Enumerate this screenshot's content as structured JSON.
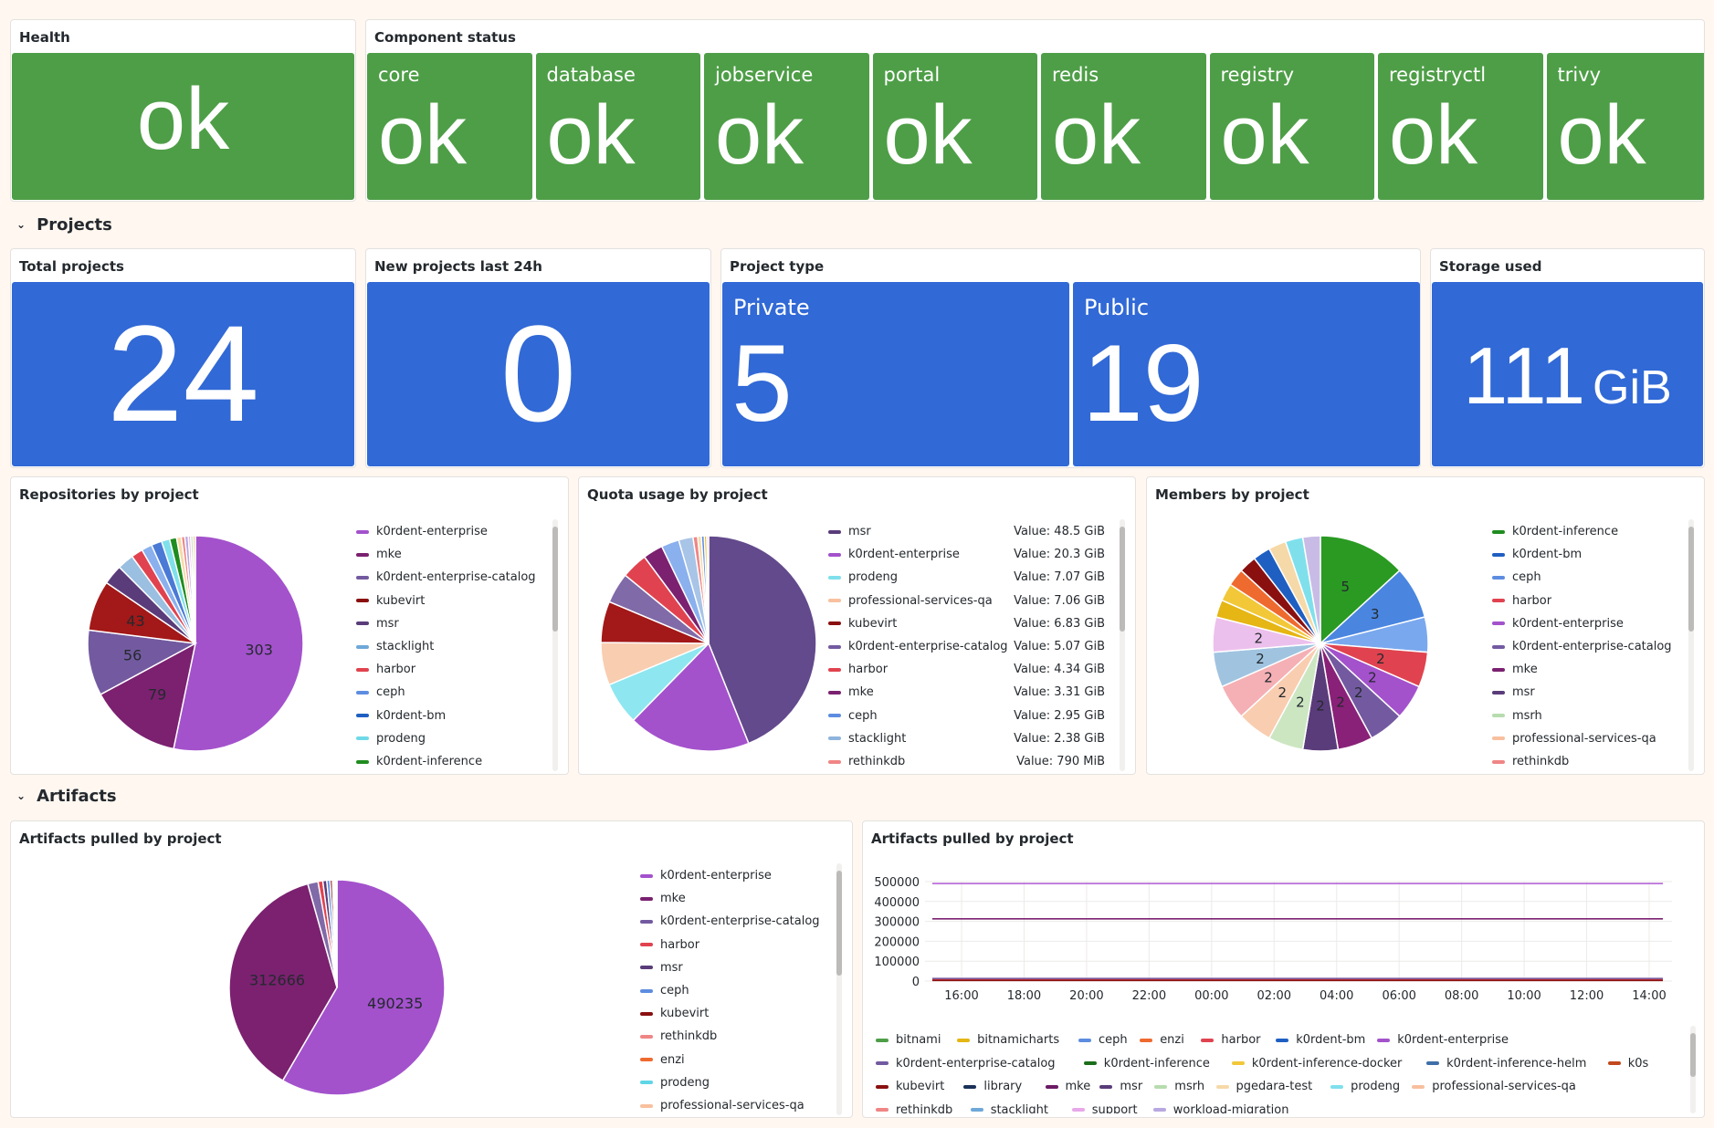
{
  "health": {
    "title": "Health",
    "value": "ok"
  },
  "component_status": {
    "title": "Component status",
    "items": [
      {
        "name": "core",
        "value": "ok"
      },
      {
        "name": "database",
        "value": "ok"
      },
      {
        "name": "jobservice",
        "value": "ok"
      },
      {
        "name": "portal",
        "value": "ok"
      },
      {
        "name": "redis",
        "value": "ok"
      },
      {
        "name": "registry",
        "value": "ok"
      },
      {
        "name": "registryctl",
        "value": "ok"
      },
      {
        "name": "trivy",
        "value": "ok"
      }
    ]
  },
  "sections": {
    "projects": "Projects",
    "artifacts": "Artifacts"
  },
  "total_projects": {
    "title": "Total projects",
    "value": "24"
  },
  "new_projects": {
    "title": "New projects last 24h",
    "value": "0"
  },
  "project_type": {
    "title": "Project type",
    "private_label": "Private",
    "private_value": "5",
    "public_label": "Public",
    "public_value": "19"
  },
  "storage": {
    "title": "Storage used",
    "value": "111",
    "unit": "GiB"
  },
  "colors": {
    "green": "#4e9e47",
    "blue": "#3169d6"
  },
  "repos_pie": {
    "title": "Repositories by project",
    "legend": [
      {
        "name": "k0rdent-enterprise",
        "color": "#a352cc"
      },
      {
        "name": "mke",
        "color": "#7b2170"
      },
      {
        "name": "k0rdent-enterprise-catalog",
        "color": "#735aa0"
      },
      {
        "name": "kubevirt",
        "color": "#8a1010"
      },
      {
        "name": "msr",
        "color": "#5a3c7a"
      },
      {
        "name": "stacklight",
        "color": "#6ea8d8"
      },
      {
        "name": "harbor",
        "color": "#e0434f"
      },
      {
        "name": "ceph",
        "color": "#5d8de0"
      },
      {
        "name": "k0rdent-bm",
        "color": "#1f5fc2"
      },
      {
        "name": "prodeng",
        "color": "#6fd9e8"
      },
      {
        "name": "k0rdent-inference",
        "color": "#1f8c1f"
      }
    ]
  },
  "quota_pie": {
    "title": "Quota usage by project",
    "legend": [
      {
        "name": "msr",
        "value": "Value: 48.5 GiB",
        "color": "#5a3c7a"
      },
      {
        "name": "k0rdent-enterprise",
        "value": "Value: 20.3 GiB",
        "color": "#a352cc"
      },
      {
        "name": "prodeng",
        "value": "Value: 7.07 GiB",
        "color": "#7fe0ec"
      },
      {
        "name": "professional-services-qa",
        "value": "Value: 7.06 GiB",
        "color": "#f8c09e"
      },
      {
        "name": "kubevirt",
        "value": "Value: 6.83 GiB",
        "color": "#8a1010"
      },
      {
        "name": "k0rdent-enterprise-catalog",
        "value": "Value: 5.07 GiB",
        "color": "#735aa0"
      },
      {
        "name": "harbor",
        "value": "Value: 4.34 GiB",
        "color": "#e0434f"
      },
      {
        "name": "mke",
        "value": "Value: 3.31 GiB",
        "color": "#7b2170"
      },
      {
        "name": "ceph",
        "value": "Value: 2.95 GiB",
        "color": "#5d8de0"
      },
      {
        "name": "stacklight",
        "value": "Value: 2.38 GiB",
        "color": "#8fb4de"
      },
      {
        "name": "rethinkdb",
        "value": "Value: 790 MiB",
        "color": "#f08585"
      }
    ]
  },
  "members_pie": {
    "title": "Members by project",
    "legend": [
      {
        "name": "k0rdent-inference",
        "color": "#1f8c1f"
      },
      {
        "name": "k0rdent-bm",
        "color": "#1f5fc2"
      },
      {
        "name": "ceph",
        "color": "#5d8de0"
      },
      {
        "name": "harbor",
        "color": "#e0434f"
      },
      {
        "name": "k0rdent-enterprise",
        "color": "#a352cc"
      },
      {
        "name": "k0rdent-enterprise-catalog",
        "color": "#735aa0"
      },
      {
        "name": "mke",
        "color": "#7b2170"
      },
      {
        "name": "msr",
        "color": "#5a3c7a"
      },
      {
        "name": "msrh",
        "color": "#b7dcae"
      },
      {
        "name": "professional-services-qa",
        "color": "#f8c09e"
      },
      {
        "name": "rethinkdb",
        "color": "#f08585"
      }
    ]
  },
  "artifacts_pie": {
    "title": "Artifacts pulled by project",
    "legend": [
      {
        "name": "k0rdent-enterprise",
        "color": "#a352cc"
      },
      {
        "name": "mke",
        "color": "#7b2170"
      },
      {
        "name": "k0rdent-enterprise-catalog",
        "color": "#735aa0"
      },
      {
        "name": "harbor",
        "color": "#e0434f"
      },
      {
        "name": "msr",
        "color": "#5a3c7a"
      },
      {
        "name": "ceph",
        "color": "#5d8de0"
      },
      {
        "name": "kubevirt",
        "color": "#8a1010"
      },
      {
        "name": "rethinkdb",
        "color": "#f08585"
      },
      {
        "name": "enzi",
        "color": "#ef6a2f"
      },
      {
        "name": "prodeng",
        "color": "#5fd6e6"
      },
      {
        "name": "professional-services-qa",
        "color": "#f8c09e"
      }
    ]
  },
  "artifacts_ts": {
    "title": "Artifacts pulled by project",
    "legend": [
      {
        "name": "bitnami",
        "color": "#4e9e47"
      },
      {
        "name": "bitnamicharts",
        "color": "#e5b614"
      },
      {
        "name": "ceph",
        "color": "#5d8de0"
      },
      {
        "name": "enzi",
        "color": "#ef6a2f"
      },
      {
        "name": "harbor",
        "color": "#e0434f"
      },
      {
        "name": "k0rdent-bm",
        "color": "#1f5fc2"
      },
      {
        "name": "k0rdent-enterprise",
        "color": "#a352cc"
      },
      {
        "name": "k0rdent-enterprise-catalog",
        "color": "#735aa0"
      },
      {
        "name": "k0rdent-inference",
        "color": "#1a6e1a"
      },
      {
        "name": "k0rdent-inference-docker",
        "color": "#f2c838"
      },
      {
        "name": "k0rdent-inference-helm",
        "color": "#3f6fa8"
      },
      {
        "name": "k0s",
        "color": "#c2481e"
      },
      {
        "name": "kubevirt",
        "color": "#8a1010"
      },
      {
        "name": "library",
        "color": "#1a3158"
      },
      {
        "name": "mke",
        "color": "#6c1a64"
      },
      {
        "name": "msr",
        "color": "#5a3c7a"
      },
      {
        "name": "msrh",
        "color": "#b7dcae"
      },
      {
        "name": "pgedara-test",
        "color": "#f6d9a8"
      },
      {
        "name": "prodeng",
        "color": "#7fe0ec"
      },
      {
        "name": "professional-services-qa",
        "color": "#f8c09e"
      },
      {
        "name": "rethinkdb",
        "color": "#f08585"
      },
      {
        "name": "stacklight",
        "color": "#6ea8d8"
      },
      {
        "name": "support",
        "color": "#e8a8e8"
      },
      {
        "name": "workload-migration",
        "color": "#b8a8e0"
      }
    ]
  },
  "chart_data": [
    {
      "type": "pie",
      "title": "Repositories by project",
      "slices": [
        {
          "name": "k0rdent-enterprise",
          "value": 303,
          "label": "303",
          "color": "#a352cc"
        },
        {
          "name": "mke",
          "value": 79,
          "label": "79",
          "color": "#7b2170"
        },
        {
          "name": "k0rdent-enterprise-catalog",
          "value": 56,
          "label": "56",
          "color": "#735aa0"
        },
        {
          "name": "kubevirt",
          "value": 43,
          "label": "43",
          "color": "#a31818"
        },
        {
          "name": "msr",
          "value": 17,
          "color": "#5a3c7a"
        },
        {
          "name": "stacklight",
          "value": 14,
          "color": "#9bbfe0"
        },
        {
          "name": "harbor",
          "value": 10,
          "color": "#e0434f"
        },
        {
          "name": "ceph",
          "value": 9,
          "color": "#8ab0ee"
        },
        {
          "name": "k0rdent-bm",
          "value": 9,
          "color": "#4a7ad6"
        },
        {
          "name": "prodeng",
          "value": 7,
          "color": "#7fe0ec"
        },
        {
          "name": "k0rdent-inference",
          "value": 6,
          "color": "#1f8c1f"
        },
        {
          "name": "other-1",
          "value": 4,
          "color": "#f6d9a8"
        },
        {
          "name": "other-2",
          "value": 3,
          "color": "#f08585"
        },
        {
          "name": "other-3",
          "value": 3,
          "color": "#b8a8e0"
        },
        {
          "name": "other-4",
          "value": 2,
          "color": "#e8a8e8"
        },
        {
          "name": "other-5",
          "value": 2,
          "color": "#b7dcae"
        },
        {
          "name": "other-6",
          "value": 2,
          "color": "#f8c09e"
        }
      ]
    },
    {
      "type": "pie",
      "title": "Quota usage by project",
      "slices": [
        {
          "name": "msr",
          "value": 48.5,
          "color": "#634a8c"
        },
        {
          "name": "k0rdent-enterprise",
          "value": 20.3,
          "color": "#a352cc"
        },
        {
          "name": "prodeng",
          "value": 7.07,
          "color": "#8ee6f0"
        },
        {
          "name": "professional-services-qa",
          "value": 7.06,
          "color": "#f9cdb0"
        },
        {
          "name": "kubevirt",
          "value": 6.83,
          "color": "#a31818"
        },
        {
          "name": "k0rdent-enterprise-catalog",
          "value": 5.07,
          "color": "#806aa8"
        },
        {
          "name": "harbor",
          "value": 4.34,
          "color": "#e0434f"
        },
        {
          "name": "mke",
          "value": 3.31,
          "color": "#7b2170"
        },
        {
          "name": "ceph",
          "value": 2.95,
          "color": "#8ab0ee"
        },
        {
          "name": "stacklight",
          "value": 2.38,
          "color": "#a8c4e6"
        },
        {
          "name": "rethinkdb",
          "value": 0.77,
          "color": "#f08585"
        },
        {
          "name": "other-1",
          "value": 0.6,
          "color": "#f6d9a8"
        },
        {
          "name": "other-2",
          "value": 0.5,
          "color": "#5d8de0"
        },
        {
          "name": "other-3",
          "value": 0.4,
          "color": "#e5b614"
        },
        {
          "name": "other-4",
          "value": 0.3,
          "color": "#e8a8e8"
        }
      ]
    },
    {
      "type": "pie",
      "title": "Members by project",
      "slices": [
        {
          "name": "k0rdent-inference",
          "value": 5,
          "label": "5",
          "color": "#2a9a22"
        },
        {
          "name": "k0rdent-bm",
          "value": 3,
          "label": "3",
          "color": "#4a86e0"
        },
        {
          "name": "ceph",
          "value": 2,
          "color": "#7aa8ee"
        },
        {
          "name": "harbor",
          "value": 2,
          "label": "2",
          "color": "#e0434f"
        },
        {
          "name": "k0rdent-enterprise",
          "value": 2,
          "label": "2",
          "color": "#a352cc"
        },
        {
          "name": "k0rdent-enterprise-catalog",
          "value": 2,
          "label": "2",
          "color": "#735aa0"
        },
        {
          "name": "mke",
          "value": 2,
          "label": "2",
          "color": "#8a2178"
        },
        {
          "name": "msr",
          "value": 2,
          "label": "2",
          "color": "#5a3c7a"
        },
        {
          "name": "msrh",
          "value": 2,
          "label": "2",
          "color": "#cce6c2"
        },
        {
          "name": "professional-services-qa",
          "value": 2,
          "label": "2",
          "color": "#f9cdb0"
        },
        {
          "name": "rethinkdb",
          "value": 2,
          "label": "2",
          "color": "#f5b0b5"
        },
        {
          "name": "other-1",
          "value": 2,
          "label": "2",
          "color": "#a0c4e0"
        },
        {
          "name": "other-2",
          "value": 2,
          "label": "2",
          "color": "#ecc0ec"
        },
        {
          "name": "other-3",
          "value": 1,
          "color": "#e5b614"
        },
        {
          "name": "other-4",
          "value": 1,
          "color": "#f2c838"
        },
        {
          "name": "other-5",
          "value": 1,
          "color": "#ef6a2f"
        },
        {
          "name": "other-6",
          "value": 1,
          "color": "#8a1010"
        },
        {
          "name": "other-7",
          "value": 1,
          "color": "#1f5fc2"
        },
        {
          "name": "other-8",
          "value": 1,
          "color": "#f6d9a8"
        },
        {
          "name": "other-9",
          "value": 1,
          "color": "#7fe0ec"
        },
        {
          "name": "other-10",
          "value": 1,
          "color": "#c8bce6"
        }
      ]
    },
    {
      "type": "pie",
      "title": "Artifacts pulled by project",
      "slices": [
        {
          "name": "k0rdent-enterprise",
          "value": 490235,
          "label": "490235",
          "color": "#a352cc"
        },
        {
          "name": "mke",
          "value": 312666,
          "label": "312666",
          "color": "#7b2170"
        },
        {
          "name": "k0rdent-enterprise-catalog",
          "value": 13000,
          "color": "#806aa8"
        },
        {
          "name": "harbor",
          "value": 6000,
          "color": "#e0434f"
        },
        {
          "name": "msr",
          "value": 5000,
          "color": "#5a3c7a"
        },
        {
          "name": "ceph",
          "value": 4000,
          "color": "#5d8de0"
        },
        {
          "name": "kubevirt",
          "value": 3000,
          "color": "#8a1010"
        },
        {
          "name": "rethinkdb",
          "value": 2000,
          "color": "#f08585"
        },
        {
          "name": "enzi",
          "value": 1500,
          "color": "#ef6a2f"
        },
        {
          "name": "prodeng",
          "value": 1200,
          "color": "#5fd6e6"
        },
        {
          "name": "professional-services-qa",
          "value": 1000,
          "color": "#f8c09e"
        }
      ]
    },
    {
      "type": "line",
      "title": "Artifacts pulled by project",
      "x": [
        "16:00",
        "18:00",
        "20:00",
        "22:00",
        "00:00",
        "02:00",
        "04:00",
        "06:00",
        "08:00",
        "10:00",
        "12:00",
        "14:00"
      ],
      "yticks": [
        "500000",
        "400000",
        "300000",
        "200000",
        "100000",
        "0"
      ],
      "ylim": [
        0,
        500000
      ],
      "series": [
        {
          "name": "k0rdent-enterprise",
          "value": 490235,
          "color": "#b05ad4"
        },
        {
          "name": "mke",
          "value": 312666,
          "color": "#7b2170"
        },
        {
          "name": "k0rdent-enterprise-catalog",
          "value": 13000,
          "color": "#735aa0"
        },
        {
          "name": "harbor",
          "value": 6000,
          "color": "#e0434f"
        },
        {
          "name": "kubevirt",
          "value": 3000,
          "color": "#8a1010"
        }
      ]
    }
  ]
}
